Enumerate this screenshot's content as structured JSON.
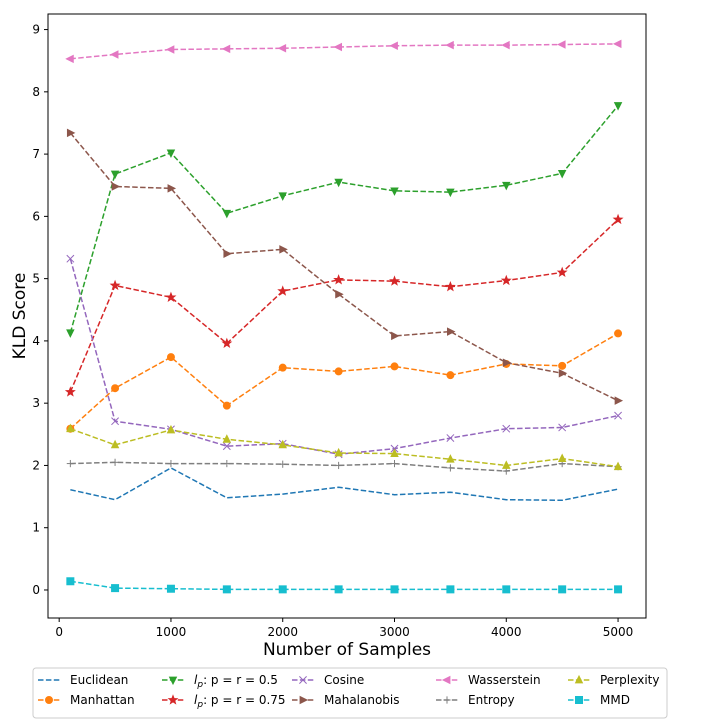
{
  "chart_data": {
    "type": "line",
    "title": "",
    "xlabel": "Number of Samples",
    "ylabel": "KLD Score",
    "x": [
      100,
      500,
      1000,
      1500,
      2000,
      2500,
      3000,
      3500,
      4000,
      4500,
      5000
    ],
    "xlim": [
      -100,
      5250
    ],
    "ylim": [
      -0.45,
      9.25
    ],
    "xticks": [
      0,
      1000,
      2000,
      3000,
      4000,
      5000
    ],
    "yticks": [
      0,
      1,
      2,
      3,
      4,
      5,
      6,
      7,
      8,
      9
    ],
    "grid": false,
    "legend_position": "bottom-center",
    "series": [
      {
        "name": "Euclidean",
        "color": "#1f77b4",
        "marker": "none",
        "values": [
          1.61,
          1.45,
          1.96,
          1.48,
          1.54,
          1.65,
          1.53,
          1.57,
          1.45,
          1.44,
          1.62
        ]
      },
      {
        "name": "Manhattan",
        "color": "#ff7f0e",
        "marker": "circle",
        "values": [
          2.59,
          3.24,
          3.74,
          2.96,
          3.57,
          3.51,
          3.59,
          3.45,
          3.63,
          3.6,
          4.12
        ]
      },
      {
        "name": "l_p: p = r = 0.5",
        "color": "#2ca02c",
        "marker": "triangle-down",
        "values": [
          4.13,
          6.68,
          7.02,
          6.05,
          6.33,
          6.55,
          6.41,
          6.39,
          6.5,
          6.69,
          7.78
        ]
      },
      {
        "name": "l_p: p = r = 0.75",
        "color": "#d62728",
        "marker": "star",
        "values": [
          3.18,
          4.89,
          4.7,
          3.96,
          4.8,
          4.98,
          4.96,
          4.87,
          4.97,
          5.1,
          5.95
        ]
      },
      {
        "name": "Cosine",
        "color": "#9467bd",
        "marker": "x",
        "values": [
          5.32,
          2.71,
          2.58,
          2.31,
          2.35,
          2.18,
          2.27,
          2.44,
          2.59,
          2.61,
          2.8
        ]
      },
      {
        "name": "Mahalanobis",
        "color": "#8c564b",
        "marker": "triangle-right",
        "values": [
          7.34,
          6.48,
          6.45,
          5.4,
          5.47,
          4.75,
          4.08,
          4.15,
          3.65,
          3.48,
          3.04
        ]
      },
      {
        "name": "Wasserstein",
        "color": "#e377c2",
        "marker": "triangle-left",
        "values": [
          8.53,
          8.6,
          8.68,
          8.69,
          8.7,
          8.72,
          8.74,
          8.75,
          8.75,
          8.76,
          8.77
        ]
      },
      {
        "name": "Entropy",
        "color": "#7f7f7f",
        "marker": "plus",
        "values": [
          2.03,
          2.05,
          2.03,
          2.03,
          2.02,
          2.0,
          2.03,
          1.96,
          1.91,
          2.03,
          1.98
        ]
      },
      {
        "name": "Perplexity",
        "color": "#bcbd22",
        "marker": "triangle-up",
        "values": [
          2.59,
          2.33,
          2.57,
          2.42,
          2.33,
          2.2,
          2.19,
          2.1,
          2.0,
          2.11,
          1.98
        ]
      },
      {
        "name": "MMD",
        "color": "#17becf",
        "marker": "square",
        "values": [
          0.14,
          0.03,
          0.02,
          0.01,
          0.01,
          0.01,
          0.01,
          0.01,
          0.01,
          0.01,
          0.01
        ]
      }
    ],
    "legend_entries": [
      {
        "series": 0,
        "prefix": "",
        "sub": "",
        "suffix": "Euclidean"
      },
      {
        "series": 1,
        "prefix": "",
        "sub": "",
        "suffix": "Manhattan"
      },
      {
        "series": 2,
        "prefix": "l",
        "sub": "p",
        "suffix": ": p = r = 0.5"
      },
      {
        "series": 3,
        "prefix": "l",
        "sub": "p",
        "suffix": ": p = r = 0.75"
      },
      {
        "series": 4,
        "prefix": "",
        "sub": "",
        "suffix": "Cosine"
      },
      {
        "series": 5,
        "prefix": "",
        "sub": "",
        "suffix": "Mahalanobis"
      },
      {
        "series": 6,
        "prefix": "",
        "sub": "",
        "suffix": "Wasserstein"
      },
      {
        "series": 7,
        "prefix": "",
        "sub": "",
        "suffix": "Entropy"
      },
      {
        "series": 8,
        "prefix": "",
        "sub": "",
        "suffix": "Perplexity"
      },
      {
        "series": 9,
        "prefix": "",
        "sub": "",
        "suffix": "MMD"
      }
    ]
  }
}
